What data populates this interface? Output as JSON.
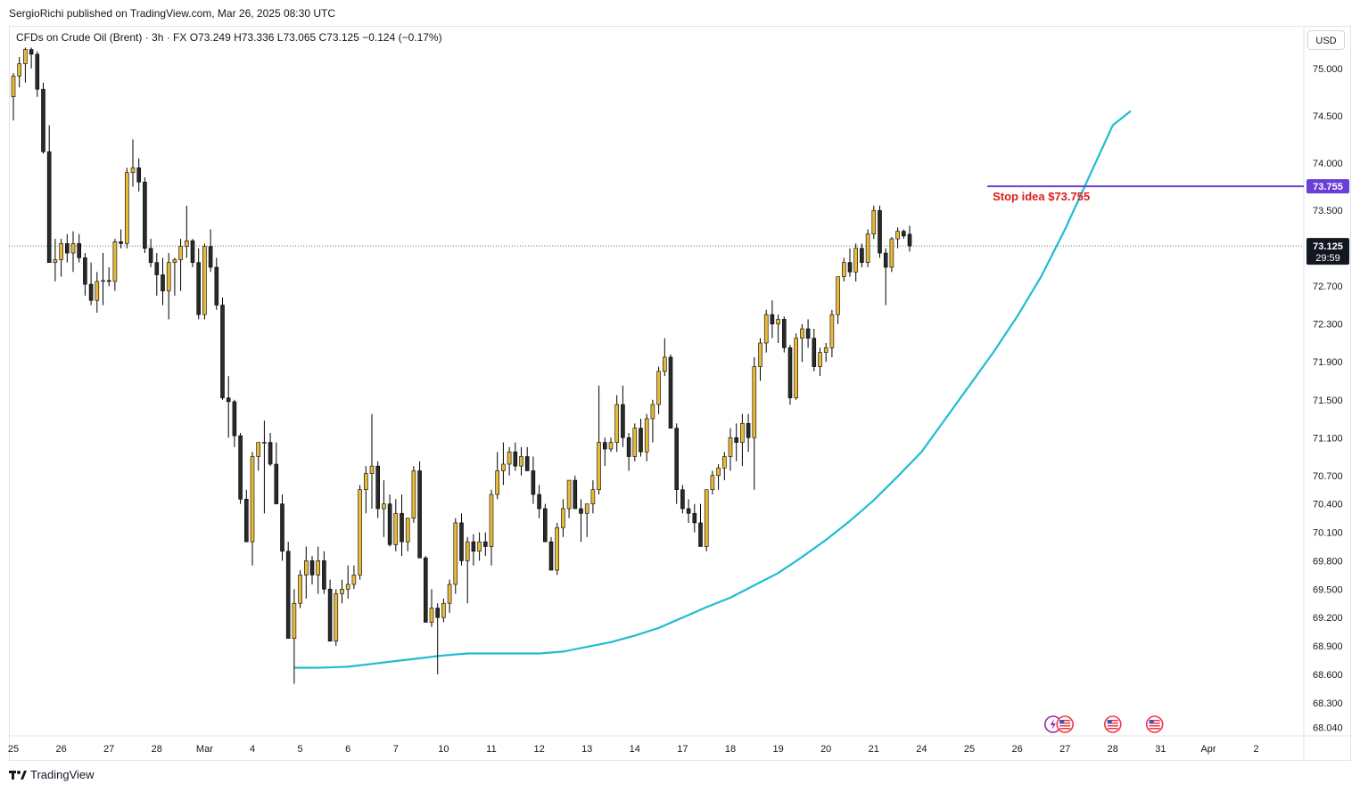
{
  "header": {
    "publish_line": "SergioRichi published on TradingView.com, Mar 26, 2025 08:30 UTC",
    "legend_line": "CFDs on Crude Oil (Brent) · 3h · FX  O73.249  H73.336  L73.065  C73.125  −0.124 (−0.17%)",
    "currency": "USD"
  },
  "footer": {
    "brand": "TradingView"
  },
  "colors": {
    "up": "#e8b93a",
    "down": "#2a2a2a",
    "wick": "#000000",
    "ma": "#1fbcd2",
    "stop": "#6a3fd8",
    "annotation": "#e01b1b",
    "price_tag": "#131722"
  },
  "chart_data": {
    "type": "candlestick",
    "title": "CFDs on Crude Oil (Brent) · 3h · FX",
    "ylim": [
      67.95,
      75.45
    ],
    "y_ticks": [
      "75.000",
      "74.500",
      "74.000",
      "73.500",
      "72.700",
      "72.300",
      "71.900",
      "71.500",
      "71.100",
      "70.700",
      "70.400",
      "70.100",
      "69.800",
      "69.500",
      "69.200",
      "68.900",
      "68.600",
      "68.300",
      "68.040"
    ],
    "x_labels": [
      "25",
      "26",
      "27",
      "28",
      "Mar",
      "4",
      "5",
      "6",
      "7",
      "10",
      "11",
      "12",
      "13",
      "14",
      "17",
      "18",
      "19",
      "20",
      "21",
      "24",
      "25",
      "26",
      "27",
      "28",
      "31",
      "Apr",
      "2"
    ],
    "x_label_index": [
      0,
      8,
      16,
      24,
      32,
      40,
      48,
      56,
      64,
      72,
      80,
      88,
      96,
      104,
      112,
      120,
      128,
      136,
      144,
      152,
      160,
      168,
      176,
      184,
      192,
      200,
      208
    ],
    "candles": [
      [
        74.7,
        74.95,
        74.45,
        74.92
      ],
      [
        74.92,
        75.12,
        74.8,
        75.05
      ],
      [
        75.05,
        75.22,
        74.85,
        75.2
      ],
      [
        75.2,
        75.22,
        75.0,
        75.15
      ],
      [
        75.15,
        75.18,
        74.7,
        74.78
      ],
      [
        74.78,
        74.85,
        74.1,
        74.12
      ],
      [
        74.12,
        74.4,
        72.95,
        72.95
      ],
      [
        72.95,
        73.2,
        72.75,
        72.98
      ],
      [
        72.98,
        73.2,
        72.8,
        73.15
      ],
      [
        73.15,
        73.25,
        72.95,
        73.05
      ],
      [
        73.05,
        73.28,
        72.85,
        73.15
      ],
      [
        73.15,
        73.25,
        72.95,
        73.0
      ],
      [
        73.0,
        73.05,
        72.6,
        72.72
      ],
      [
        72.72,
        72.95,
        72.5,
        72.55
      ],
      [
        72.55,
        72.85,
        72.42,
        72.75
      ],
      [
        72.75,
        73.05,
        72.5,
        72.76
      ],
      [
        72.76,
        72.9,
        72.7,
        72.75
      ],
      [
        72.75,
        73.2,
        72.65,
        73.17
      ],
      [
        73.17,
        73.3,
        73.1,
        73.15
      ],
      [
        73.15,
        73.95,
        73.1,
        73.9
      ],
      [
        73.9,
        74.25,
        73.75,
        73.95
      ],
      [
        73.95,
        74.05,
        73.7,
        73.8
      ],
      [
        73.8,
        73.85,
        73.05,
        73.1
      ],
      [
        73.1,
        73.2,
        72.9,
        72.95
      ],
      [
        72.95,
        73.05,
        72.6,
        72.82
      ],
      [
        72.82,
        73.0,
        72.5,
        72.65
      ],
      [
        72.65,
        73.05,
        72.35,
        72.95
      ],
      [
        72.95,
        73.0,
        72.6,
        72.98
      ],
      [
        72.98,
        73.2,
        72.65,
        73.12
      ],
      [
        73.12,
        73.55,
        73.0,
        73.18
      ],
      [
        73.18,
        73.2,
        72.9,
        72.95
      ],
      [
        72.95,
        73.1,
        72.35,
        72.4
      ],
      [
        72.4,
        73.15,
        72.35,
        73.12
      ],
      [
        73.12,
        73.3,
        72.85,
        72.9
      ],
      [
        72.9,
        73.0,
        72.45,
        72.5
      ],
      [
        72.5,
        72.58,
        71.5,
        71.52
      ],
      [
        71.52,
        71.75,
        71.1,
        71.48
      ],
      [
        71.48,
        71.5,
        71.0,
        71.12
      ],
      [
        71.12,
        71.15,
        70.4,
        70.45
      ],
      [
        70.45,
        70.55,
        70.0,
        70.0
      ],
      [
        70.0,
        70.95,
        69.75,
        70.9
      ],
      [
        70.9,
        71.05,
        70.75,
        71.05
      ],
      [
        71.05,
        71.28,
        70.3,
        71.05
      ],
      [
        71.05,
        71.15,
        70.8,
        70.82
      ],
      [
        70.82,
        71.05,
        70.4,
        70.4
      ],
      [
        70.4,
        70.5,
        69.8,
        69.9
      ],
      [
        69.9,
        70.0,
        68.98,
        68.98
      ],
      [
        68.98,
        69.5,
        68.5,
        69.35
      ],
      [
        69.35,
        69.7,
        69.3,
        69.65
      ],
      [
        69.65,
        69.95,
        69.4,
        69.8
      ],
      [
        69.8,
        69.85,
        69.55,
        69.65
      ],
      [
        69.65,
        69.95,
        69.45,
        69.8
      ],
      [
        69.8,
        69.9,
        69.45,
        69.5
      ],
      [
        69.5,
        69.6,
        68.95,
        68.95
      ],
      [
        68.95,
        69.5,
        68.9,
        69.45
      ],
      [
        69.45,
        69.6,
        69.35,
        69.5
      ],
      [
        69.5,
        69.75,
        69.4,
        69.55
      ],
      [
        69.55,
        69.75,
        69.5,
        69.65
      ],
      [
        69.65,
        70.6,
        69.6,
        70.55
      ],
      [
        70.55,
        70.8,
        70.3,
        70.72
      ],
      [
        70.72,
        71.35,
        70.35,
        70.8
      ],
      [
        70.8,
        70.85,
        70.25,
        70.35
      ],
      [
        70.35,
        70.65,
        70.05,
        70.4
      ],
      [
        70.4,
        70.5,
        69.95,
        69.97
      ],
      [
        69.97,
        70.45,
        69.9,
        70.3
      ],
      [
        70.3,
        70.5,
        69.85,
        70.0
      ],
      [
        70.0,
        70.25,
        69.9,
        70.25
      ],
      [
        70.25,
        70.8,
        70.2,
        70.75
      ],
      [
        70.75,
        70.85,
        69.85,
        69.83
      ],
      [
        69.83,
        69.85,
        69.15,
        69.15
      ],
      [
        69.15,
        69.5,
        69.1,
        69.3
      ],
      [
        69.3,
        69.35,
        68.6,
        69.2
      ],
      [
        69.2,
        69.4,
        69.15,
        69.35
      ],
      [
        69.35,
        69.6,
        69.25,
        69.55
      ],
      [
        69.55,
        70.25,
        69.45,
        70.2
      ],
      [
        70.2,
        70.3,
        69.75,
        69.8
      ],
      [
        69.8,
        70.05,
        69.35,
        70.0
      ],
      [
        70.0,
        70.08,
        69.75,
        69.9
      ],
      [
        69.9,
        70.1,
        69.8,
        70.0
      ],
      [
        70.0,
        70.1,
        69.85,
        69.95
      ],
      [
        69.95,
        70.55,
        69.75,
        70.5
      ],
      [
        70.5,
        70.95,
        70.45,
        70.75
      ],
      [
        70.75,
        71.05,
        70.6,
        70.82
      ],
      [
        70.82,
        71.0,
        70.7,
        70.95
      ],
      [
        70.95,
        71.05,
        70.75,
        70.8
      ],
      [
        70.8,
        71.0,
        70.7,
        70.9
      ],
      [
        70.9,
        71.0,
        70.75,
        70.75
      ],
      [
        70.75,
        70.9,
        70.4,
        70.5
      ],
      [
        70.5,
        70.6,
        70.25,
        70.35
      ],
      [
        70.35,
        70.4,
        70.0,
        70.0
      ],
      [
        70.0,
        70.05,
        69.7,
        69.7
      ],
      [
        69.7,
        70.2,
        69.65,
        70.15
      ],
      [
        70.15,
        70.45,
        70.05,
        70.35
      ],
      [
        70.35,
        70.65,
        70.25,
        70.65
      ],
      [
        70.65,
        70.7,
        70.35,
        70.35
      ],
      [
        70.35,
        70.45,
        70.0,
        70.3
      ],
      [
        70.3,
        70.4,
        70.05,
        70.4
      ],
      [
        70.4,
        70.65,
        70.3,
        70.55
      ],
      [
        70.55,
        71.65,
        70.5,
        71.05
      ],
      [
        71.05,
        71.1,
        70.8,
        70.98
      ],
      [
        70.98,
        71.1,
        70.95,
        71.05
      ],
      [
        71.05,
        71.55,
        70.95,
        71.45
      ],
      [
        71.45,
        71.65,
        71.0,
        71.1
      ],
      [
        71.1,
        71.15,
        70.75,
        70.9
      ],
      [
        70.9,
        71.25,
        70.85,
        71.2
      ],
      [
        71.2,
        71.3,
        70.9,
        70.95
      ],
      [
        70.95,
        71.35,
        70.85,
        71.3
      ],
      [
        71.3,
        71.5,
        71.05,
        71.45
      ],
      [
        71.45,
        71.85,
        71.35,
        71.8
      ],
      [
        71.8,
        72.15,
        71.75,
        71.95
      ],
      [
        71.95,
        71.98,
        71.2,
        71.2
      ],
      [
        71.2,
        71.25,
        70.4,
        70.55
      ],
      [
        70.55,
        70.6,
        70.3,
        70.35
      ],
      [
        70.35,
        70.45,
        70.2,
        70.3
      ],
      [
        70.3,
        70.4,
        70.1,
        70.2
      ],
      [
        70.2,
        70.4,
        69.95,
        69.95
      ],
      [
        69.95,
        70.55,
        69.9,
        70.55
      ],
      [
        70.55,
        70.75,
        70.5,
        70.7
      ],
      [
        70.7,
        70.82,
        70.55,
        70.78
      ],
      [
        70.78,
        70.95,
        70.65,
        70.9
      ],
      [
        70.9,
        71.2,
        70.75,
        71.1
      ],
      [
        71.1,
        71.25,
        70.85,
        71.05
      ],
      [
        71.05,
        71.35,
        70.8,
        71.25
      ],
      [
        71.25,
        71.35,
        70.95,
        71.1
      ],
      [
        71.1,
        71.95,
        70.55,
        71.85
      ],
      [
        71.85,
        72.15,
        71.7,
        72.1
      ],
      [
        72.1,
        72.45,
        72.0,
        72.4
      ],
      [
        72.4,
        72.55,
        72.15,
        72.3
      ],
      [
        72.3,
        72.4,
        72.1,
        72.35
      ],
      [
        72.35,
        72.38,
        72.0,
        72.05
      ],
      [
        72.05,
        72.08,
        71.45,
        71.52
      ],
      [
        71.52,
        72.2,
        71.5,
        72.15
      ],
      [
        72.15,
        72.3,
        71.9,
        72.25
      ],
      [
        72.25,
        72.35,
        72.05,
        72.15
      ],
      [
        72.15,
        72.25,
        71.8,
        71.85
      ],
      [
        71.85,
        72.05,
        71.75,
        72.0
      ],
      [
        72.0,
        72.1,
        71.9,
        72.05
      ],
      [
        72.05,
        72.45,
        71.95,
        72.4
      ],
      [
        72.4,
        72.8,
        72.3,
        72.8
      ],
      [
        72.8,
        73.0,
        72.75,
        72.95
      ],
      [
        72.95,
        73.1,
        72.8,
        72.85
      ],
      [
        72.85,
        73.15,
        72.75,
        73.1
      ],
      [
        73.1,
        73.15,
        72.9,
        72.95
      ],
      [
        72.95,
        73.3,
        72.9,
        73.25
      ],
      [
        73.25,
        73.55,
        73.2,
        73.5
      ],
      [
        73.5,
        73.55,
        73.0,
        73.05
      ],
      [
        73.05,
        73.1,
        72.5,
        72.9
      ],
      [
        72.9,
        73.22,
        72.85,
        73.2
      ],
      [
        73.2,
        73.32,
        73.1,
        73.28
      ],
      [
        73.28,
        73.3,
        73.2,
        73.23
      ],
      [
        73.249,
        73.336,
        73.065,
        73.125
      ]
    ],
    "moving_average": {
      "name": "MA",
      "x": [
        47,
        51,
        56,
        60,
        64,
        68,
        72,
        76,
        80,
        84,
        88,
        92,
        96,
        100,
        104,
        108,
        112,
        116,
        120,
        124,
        128,
        132,
        136,
        140,
        144,
        148,
        152,
        156,
        160,
        164,
        168,
        172,
        176,
        180,
        184,
        187
      ],
      "y": [
        68.67,
        68.67,
        68.68,
        68.71,
        68.74,
        68.77,
        68.8,
        68.82,
        68.82,
        68.82,
        68.82,
        68.84,
        68.89,
        68.94,
        69.01,
        69.09,
        69.2,
        69.31,
        69.41,
        69.54,
        69.67,
        69.84,
        70.02,
        70.22,
        70.44,
        70.69,
        70.95,
        71.3,
        71.65,
        72.0,
        72.38,
        72.8,
        73.3,
        73.85,
        74.4,
        74.55
      ]
    },
    "stop_line": {
      "label": "Stop idea $73.755",
      "value": 73.755,
      "start_index": 163,
      "tag": "73.755"
    },
    "last_price": {
      "value": 73.125,
      "tag": "73.125",
      "countdown": "29:59"
    },
    "event_markers": [
      {
        "index": 174,
        "icon": "lightning-flag-icon"
      },
      {
        "index": 176,
        "icon": "us-flag-icon"
      },
      {
        "index": 184,
        "icon": "us-flag-icon"
      },
      {
        "index": 191,
        "icon": "us-flag-icon"
      }
    ]
  }
}
